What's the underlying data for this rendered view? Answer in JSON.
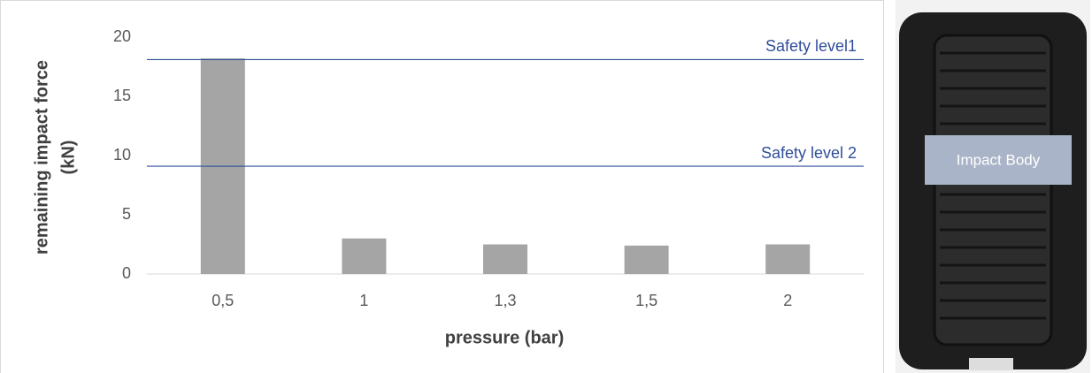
{
  "chart_data": {
    "type": "bar",
    "categories": [
      "0,5",
      "1",
      "1,3",
      "1,5",
      "2"
    ],
    "values": [
      18.2,
      3.0,
      2.5,
      2.4,
      2.5
    ],
    "color": "#a5a5a5",
    "ylim": [
      0,
      20
    ],
    "yticks": [
      0,
      5,
      10,
      15,
      20
    ],
    "grid": false,
    "xlabel": "pressure (bar)",
    "ylabel": [
      "remaining impact force",
      "(kN)"
    ],
    "reference_lines": [
      {
        "label": "Safety level1",
        "value": 18.1,
        "color": "#2f4e9a"
      },
      {
        "label": "Safety level 2",
        "value": 9.1,
        "color": "#2f4e9a"
      }
    ]
  },
  "photo": {
    "label": "Impact Body"
  }
}
